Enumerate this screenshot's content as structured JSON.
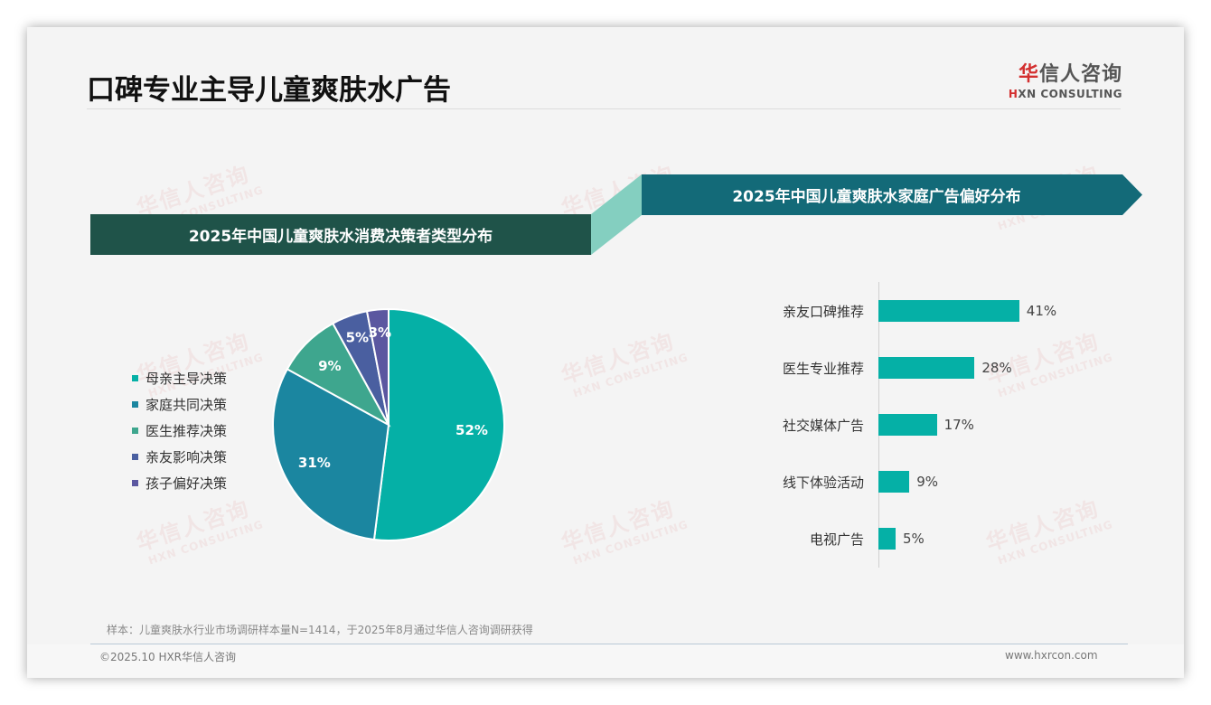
{
  "header": {
    "title": "口碑专业主导儿童爽肤水广告",
    "logo_cn_first": "华",
    "logo_cn_rest": "信人咨询",
    "logo_en_first": "H",
    "logo_en_rest": "XN CONSULTING"
  },
  "watermark": {
    "cn": "华信人咨询",
    "en": "HXN CONSULTING"
  },
  "left_panel": {
    "banner_title": "2025年中国儿童爽肤水消费决策者类型分布"
  },
  "right_panel": {
    "banner_title": "2025年中国儿童爽肤水家庭广告偏好分布"
  },
  "colors": {
    "banner_left": "#1f5349",
    "banner_right": "#136a78",
    "connector": "#84cfc0",
    "bar": "#05b0a6"
  },
  "chart_data": [
    {
      "type": "pie",
      "title": "2025年中国儿童爽肤水消费决策者类型分布",
      "categories": [
        "母亲主导决策",
        "家庭共同决策",
        "医生推荐决策",
        "亲友影响决策",
        "孩子偏好决策"
      ],
      "values": [
        52,
        31,
        9,
        5,
        3
      ],
      "labels": [
        "52%",
        "31%",
        "9%",
        "5%",
        "3%"
      ],
      "colors": [
        "#05b0a6",
        "#1b86a0",
        "#3ea68e",
        "#4a5fa0",
        "#5b57a0"
      ],
      "legend_position": "left"
    },
    {
      "type": "bar",
      "orientation": "horizontal",
      "title": "2025年中国儿童爽肤水家庭广告偏好分布",
      "categories": [
        "亲友口碑推荐",
        "医生专业推荐",
        "社交媒体广告",
        "线下体验活动",
        "电视广告"
      ],
      "values": [
        41,
        28,
        17,
        9,
        5
      ],
      "labels": [
        "41%",
        "28%",
        "17%",
        "9%",
        "5%"
      ],
      "xlabel": "",
      "ylabel": "",
      "grid": false
    }
  ],
  "footer": {
    "note": "样本：儿童爽肤水行业市场调研样本量N=1414，于2025年8月通过华信人咨询调研获得",
    "copyright": "©2025.10 HXR华信人咨询",
    "website": "www.hxrcon.com"
  }
}
